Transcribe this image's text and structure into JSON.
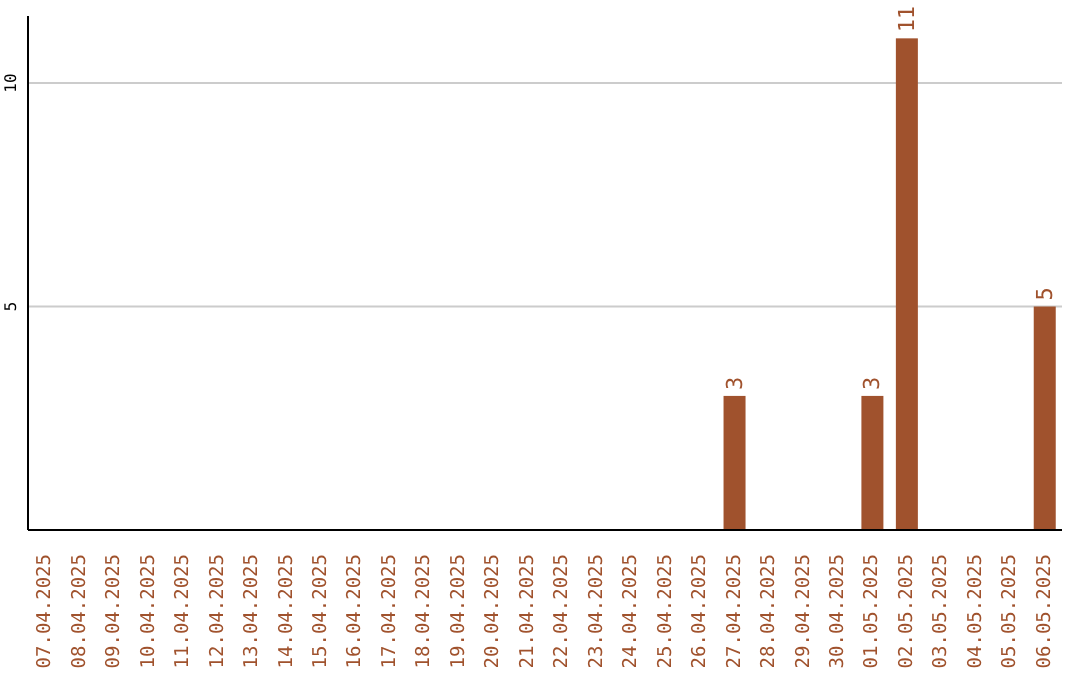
{
  "chart_data": {
    "type": "bar",
    "categories": [
      "07.04.2025",
      "08.04.2025",
      "09.04.2025",
      "10.04.2025",
      "11.04.2025",
      "12.04.2025",
      "13.04.2025",
      "14.04.2025",
      "15.04.2025",
      "16.04.2025",
      "17.04.2025",
      "18.04.2025",
      "19.04.2025",
      "20.04.2025",
      "21.04.2025",
      "22.04.2025",
      "23.04.2025",
      "24.04.2025",
      "25.04.2025",
      "26.04.2025",
      "27.04.2025",
      "28.04.2025",
      "29.04.2025",
      "30.04.2025",
      "01.05.2025",
      "02.05.2025",
      "03.05.2025",
      "04.05.2025",
      "05.05.2025",
      "06.05.2025"
    ],
    "values": [
      0,
      0,
      0,
      0,
      0,
      0,
      0,
      0,
      0,
      0,
      0,
      0,
      0,
      0,
      0,
      0,
      0,
      0,
      0,
      0,
      3,
      0,
      0,
      0,
      3,
      11,
      0,
      0,
      0,
      5
    ],
    "value_labels": [
      null,
      null,
      null,
      null,
      null,
      null,
      null,
      null,
      null,
      null,
      null,
      null,
      null,
      null,
      null,
      null,
      null,
      null,
      null,
      null,
      "3",
      null,
      null,
      null,
      "3",
      "11",
      null,
      null,
      null,
      "5"
    ],
    "color": "#a0522d",
    "ylim": [
      0,
      11.5
    ],
    "yticks": [
      5,
      10
    ],
    "grid": "y"
  }
}
